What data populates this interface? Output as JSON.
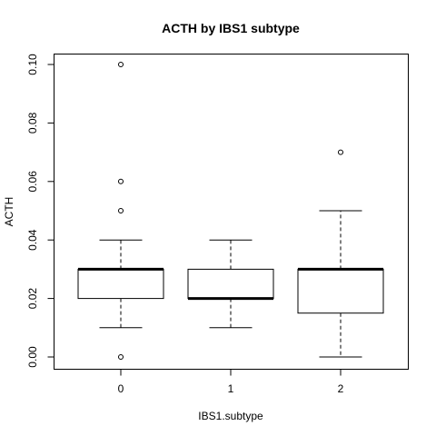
{
  "chart_data": {
    "type": "boxplot",
    "title": "ACTH by IBS1 subtype",
    "xlabel": "IBS1.subtype",
    "ylabel": "ACTH",
    "categories": [
      "0",
      "1",
      "2"
    ],
    "ylim": [
      0,
      0.1
    ],
    "yticks": [
      "0.00",
      "0.02",
      "0.04",
      "0.06",
      "0.08",
      "0.10"
    ],
    "boxes": [
      {
        "category": "0",
        "whisker_low": 0.01,
        "q1": 0.02,
        "median": 0.03,
        "q3": 0.03,
        "whisker_high": 0.04,
        "outliers": [
          0.0,
          0.05,
          0.06,
          0.1
        ]
      },
      {
        "category": "1",
        "whisker_low": 0.01,
        "q1": 0.02,
        "median": 0.02,
        "q3": 0.03,
        "whisker_high": 0.04,
        "outliers": []
      },
      {
        "category": "2",
        "whisker_low": 0.0,
        "q1": 0.015,
        "median": 0.03,
        "q3": 0.03,
        "whisker_high": 0.05,
        "outliers": [
          0.07
        ]
      }
    ],
    "grid": false,
    "legend": "none"
  }
}
